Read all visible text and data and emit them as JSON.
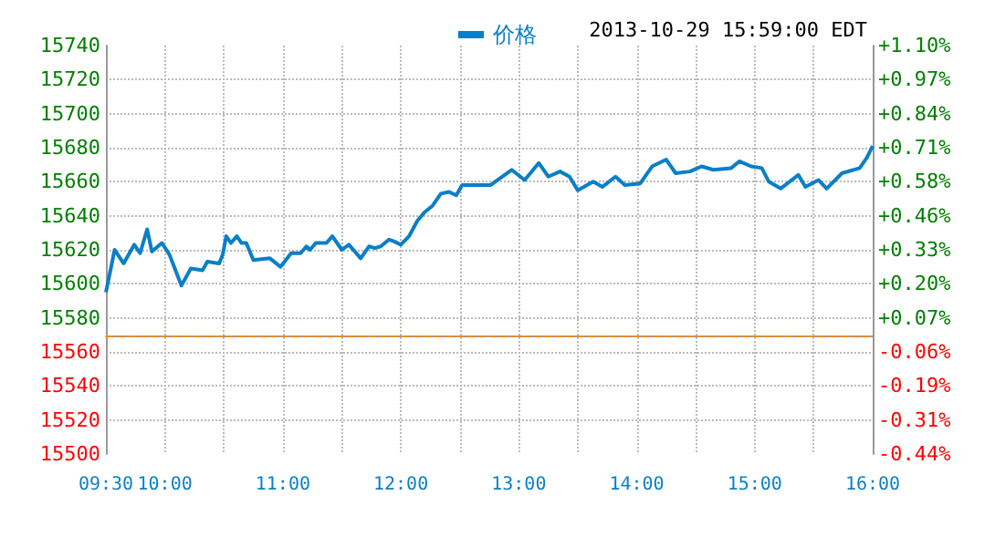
{
  "chart_data": {
    "type": "line",
    "annotations": [
      "2013-10-29 15:59:00 EDT"
    ],
    "x": [
      9.5,
      9.53,
      9.574,
      9.65,
      9.74,
      9.79,
      9.85,
      9.89,
      9.975,
      10.04,
      10.14,
      10.22,
      10.32,
      10.36,
      10.46,
      10.49,
      10.52,
      10.56,
      10.61,
      10.65,
      10.69,
      10.75,
      10.89,
      10.98,
      11.07,
      11.15,
      11.2,
      11.23,
      11.28,
      11.37,
      11.42,
      11.5,
      11.56,
      11.66,
      11.73,
      11.78,
      11.83,
      11.9,
      11.94,
      12.0,
      12.07,
      12.14,
      12.2,
      12.27,
      12.34,
      12.41,
      12.47,
      12.52,
      12.66,
      12.76,
      12.84,
      12.94,
      13.05,
      13.17,
      13.25,
      13.35,
      13.43,
      13.5,
      13.63,
      13.71,
      13.82,
      13.9,
      14.03,
      14.13,
      14.25,
      14.33,
      14.45,
      14.55,
      14.65,
      14.8,
      14.87,
      14.97,
      15.06,
      15.12,
      15.22,
      15.37,
      15.43,
      15.54,
      15.61,
      15.74,
      15.89,
      15.95,
      16.0
    ],
    "series": [
      {
        "name": "价格",
        "color": "#0a7fc8",
        "values": [
          15595,
          15605,
          15620,
          15612,
          15623,
          15618,
          15632,
          15619,
          15624,
          15617,
          15599,
          15609,
          15608,
          15613,
          15612,
          15617,
          15628,
          15624,
          15628,
          15624,
          15624,
          15614,
          15615,
          15610,
          15618,
          15618,
          15622,
          15620,
          15624,
          15624,
          15628,
          15620,
          15623,
          15615,
          15622,
          15621,
          15622,
          15626,
          15625,
          15623,
          15628,
          15637,
          15642,
          15646,
          15653,
          15654,
          15652,
          15658,
          15658,
          15658,
          15662,
          15667,
          15661,
          15671,
          15663,
          15666,
          15663,
          15655,
          15660,
          15657,
          15663,
          15658,
          15659,
          15669,
          15673,
          15665,
          15666,
          15669,
          15667,
          15668,
          15672,
          15669,
          15668,
          15660,
          15656,
          15664,
          15657,
          15661,
          15656,
          15665,
          15668,
          15674,
          15681
        ]
      }
    ],
    "xlim": [
      9.5,
      16
    ],
    "xticks": [
      {
        "value": 9.5,
        "label": "09:30"
      },
      {
        "value": 10,
        "label": "10:00"
      },
      {
        "value": 10.5,
        "label": null
      },
      {
        "value": 11,
        "label": "11:00"
      },
      {
        "value": 11.5,
        "label": null
      },
      {
        "value": 12,
        "label": "12:00"
      },
      {
        "value": 12.5,
        "label": null
      },
      {
        "value": 13,
        "label": "13:00"
      },
      {
        "value": 13.5,
        "label": null
      },
      {
        "value": 14,
        "label": "14:00"
      },
      {
        "value": 14.5,
        "label": null
      },
      {
        "value": 15,
        "label": "15:00"
      },
      {
        "value": 15.5,
        "label": null
      },
      {
        "value": 16,
        "label": "16:00"
      }
    ],
    "ylim": [
      15500,
      15740
    ],
    "yticks": [
      15500,
      15520,
      15540,
      15560,
      15580,
      15600,
      15620,
      15640,
      15660,
      15680,
      15700,
      15720,
      15740
    ],
    "y2lim": [
      -0.443,
      1.098
    ],
    "y2ticks": [
      {
        "value": -0.443,
        "label": "-0.44%"
      },
      {
        "value": -0.315,
        "label": "-0.31%"
      },
      {
        "value": -0.186,
        "label": "-0.19%"
      },
      {
        "value": -0.058,
        "label": "-0.06%"
      },
      {
        "value": 0.071,
        "label": "+0.07%"
      },
      {
        "value": 0.199,
        "label": "+0.20%"
      },
      {
        "value": 0.328,
        "label": "+0.33%"
      },
      {
        "value": 0.456,
        "label": "+0.46%"
      },
      {
        "value": 0.584,
        "label": "+0.58%"
      },
      {
        "value": 0.713,
        "label": "+0.71%"
      },
      {
        "value": 0.841,
        "label": "+0.84%"
      },
      {
        "value": 0.97,
        "label": "+0.97%"
      },
      {
        "value": 1.098,
        "label": "+1.10%"
      }
    ],
    "ref_lines": [
      {
        "axis": "y",
        "value": 15569,
        "color": "#f08c1e",
        "line_style": "dashed"
      }
    ],
    "grid": true,
    "legend": "top",
    "marker": "none",
    "line_style": "solid"
  }
}
